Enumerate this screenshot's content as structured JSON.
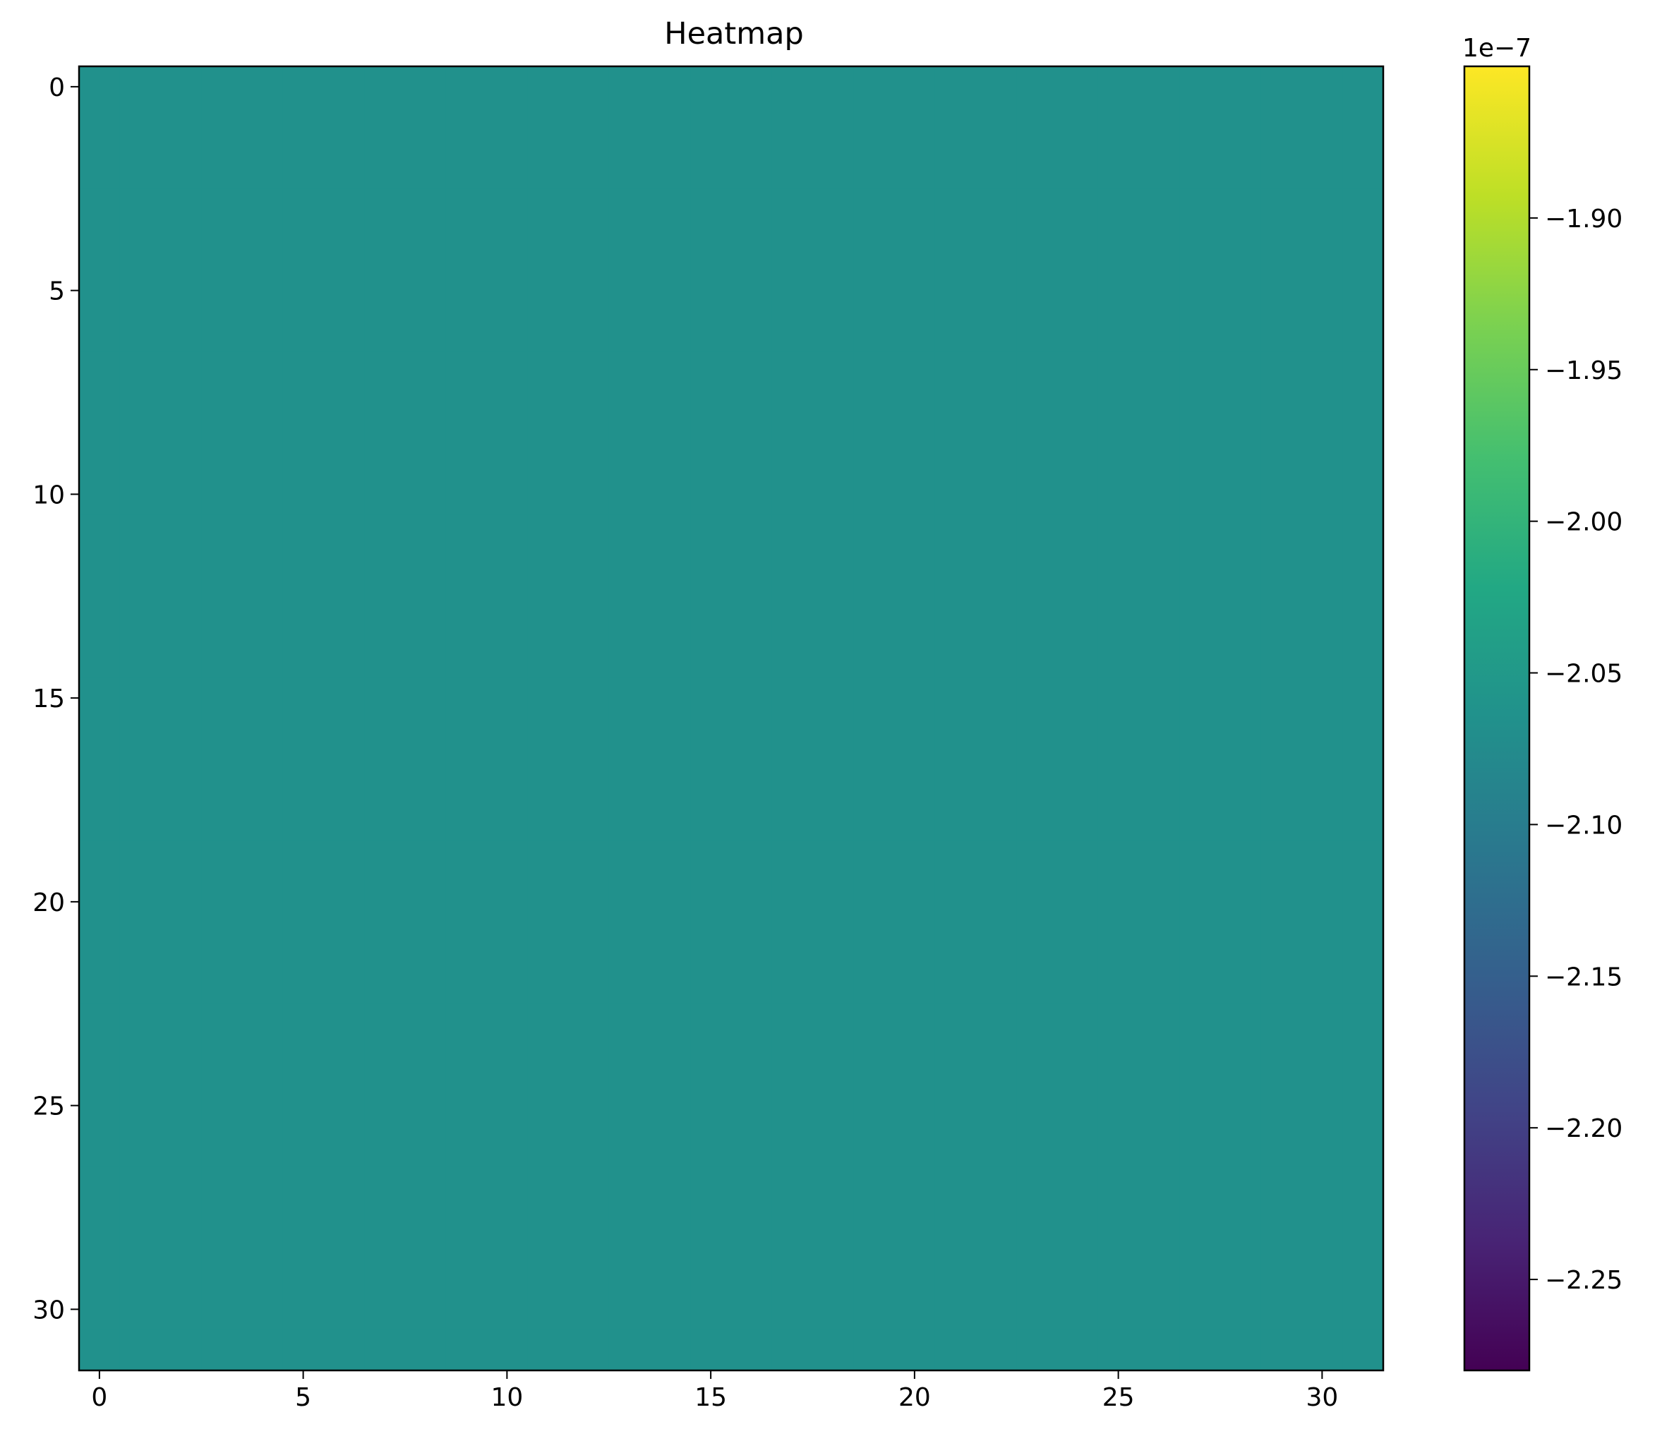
{
  "chart_data": {
    "type": "heatmap",
    "title": "Heatmap",
    "xlabel": "",
    "ylabel": "",
    "rows": 32,
    "cols": 32,
    "uniform_value": -2.065e-07,
    "cell_color": "#21918c",
    "x_ticks": [
      0,
      5,
      10,
      15,
      20,
      25,
      30
    ],
    "y_ticks": [
      0,
      5,
      10,
      15,
      20,
      25,
      30
    ],
    "x_range": [
      -0.5,
      31.5
    ],
    "y_range": [
      -0.5,
      31.5
    ],
    "colormap": "viridis",
    "colorbar": {
      "offset_text": "1e−7",
      "range": [
        -2.28,
        -1.85
      ],
      "ticks": [
        -2.25,
        -2.2,
        -2.15,
        -2.1,
        -2.05,
        -2.0,
        -1.95,
        -1.9
      ],
      "tick_labels": [
        "−2.25",
        "−2.20",
        "−2.15",
        "−2.10",
        "−2.05",
        "−2.00",
        "−1.95",
        "−1.90"
      ]
    }
  }
}
